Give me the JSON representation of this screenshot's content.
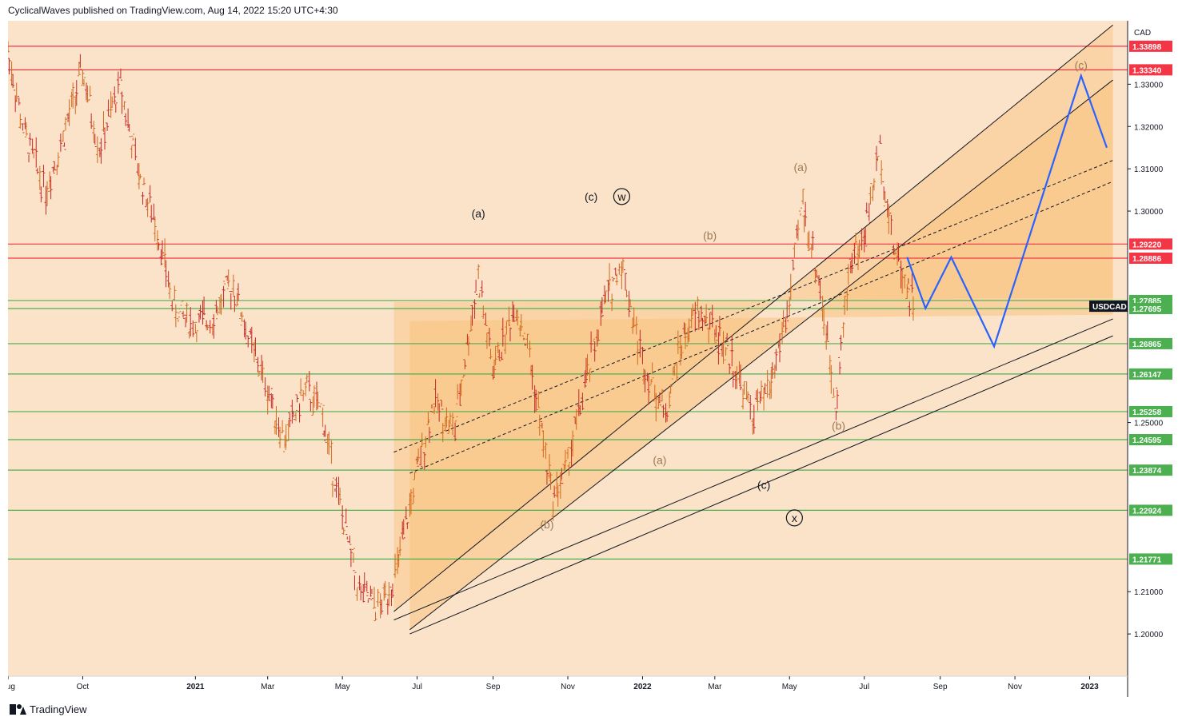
{
  "header": {
    "text": "CyclicalWaves published on TradingView.com, Aug 14, 2022 15:20 UTC+4:30"
  },
  "footer": {
    "brand": "TradingView"
  },
  "colors": {
    "background": "#fbe3c9",
    "channel_fill": "#f9c27f",
    "support": "#4caf50",
    "resistance": "#f23645",
    "projection": "#2962ff",
    "up_candle": "#d2691e",
    "down_candle": "#c62828"
  },
  "chart_data": {
    "type": "line",
    "symbol": "USDCAD",
    "currency": "CAD",
    "ylim": [
      1.19,
      1.345
    ],
    "y_ticks": [
      "1.33000",
      "1.32000",
      "1.31000",
      "1.30000",
      "1.25000",
      "1.21000",
      "1.20000"
    ],
    "x_ticks": [
      "Aug",
      "Oct",
      "2021",
      "Mar",
      "May",
      "Jul",
      "Sep",
      "Nov",
      "2022",
      "Mar",
      "May",
      "Jul",
      "Sep",
      "Nov",
      "2023"
    ],
    "resistance_levels": [
      1.33898,
      1.3334,
      1.2922,
      1.28886
    ],
    "support_levels": [
      1.27885,
      1.27695,
      1.26865,
      1.26147,
      1.25258,
      1.24595,
      1.23874,
      1.22924,
      1.21771
    ],
    "price_labels": {
      "resistance": [
        "1.33898",
        "1.33340",
        "1.29220",
        "1.28886"
      ],
      "support": [
        "1.27885",
        "1.27695",
        "1.26865",
        "1.26147",
        "1.25258",
        "1.24595",
        "1.23874",
        "1.22924",
        "1.21771"
      ],
      "current_symbol": "USDCAD"
    },
    "wave_labels": [
      {
        "text": "(a)",
        "date": "2021-08-20",
        "y": 1.2985,
        "tone": "dark"
      },
      {
        "text": "(c)",
        "date": "2021-11-20",
        "y": 1.3025,
        "tone": "dark"
      },
      {
        "text": "w",
        "date": "2021-12-15",
        "y": 1.3025,
        "tone": "dark",
        "circled": true
      },
      {
        "text": "(b)",
        "date": "2021-10-15",
        "y": 1.225,
        "tone": "muted"
      },
      {
        "text": "(a)",
        "date": "2022-01-15",
        "y": 1.2402,
        "tone": "muted"
      },
      {
        "text": "(b)",
        "date": "2022-02-25",
        "y": 1.2933,
        "tone": "muted"
      },
      {
        "text": "(c)",
        "date": "2022-04-10",
        "y": 1.2343,
        "tone": "dark"
      },
      {
        "text": "x",
        "date": "2022-05-05",
        "y": 1.2265,
        "tone": "dark",
        "circled": true
      },
      {
        "text": "(a)",
        "date": "2022-05-10",
        "y": 1.3095,
        "tone": "muted"
      },
      {
        "text": "(b)",
        "date": "2022-06-10",
        "y": 1.2483,
        "tone": "muted"
      },
      {
        "text": "(c)",
        "date": "2022-12-25",
        "y": 1.3336,
        "tone": "muted"
      }
    ],
    "projection_path": [
      {
        "date": "2022-08-05",
        "y": 1.2891
      },
      {
        "date": "2022-08-20",
        "y": 1.277
      },
      {
        "date": "2022-09-10",
        "y": 1.2891
      },
      {
        "date": "2022-10-15",
        "y": 1.268
      },
      {
        "date": "2022-12-25",
        "y": 1.332
      },
      {
        "date": "2023-01-15",
        "y": 1.315
      }
    ],
    "price_series": [
      {
        "date": "2020-08-01",
        "y": 1.338
      },
      {
        "date": "2020-08-15",
        "y": 1.318
      },
      {
        "date": "2020-09-01",
        "y": 1.305
      },
      {
        "date": "2020-09-15",
        "y": 1.317
      },
      {
        "date": "2020-10-01",
        "y": 1.333
      },
      {
        "date": "2020-10-15",
        "y": 1.315
      },
      {
        "date": "2020-11-01",
        "y": 1.33
      },
      {
        "date": "2020-11-15",
        "y": 1.31
      },
      {
        "date": "2020-12-01",
        "y": 1.296
      },
      {
        "date": "2020-12-15",
        "y": 1.277
      },
      {
        "date": "2021-01-01",
        "y": 1.273
      },
      {
        "date": "2021-01-15",
        "y": 1.275
      },
      {
        "date": "2021-02-01",
        "y": 1.283
      },
      {
        "date": "2021-02-15",
        "y": 1.269
      },
      {
        "date": "2021-03-01",
        "y": 1.258
      },
      {
        "date": "2021-03-15",
        "y": 1.246
      },
      {
        "date": "2021-04-01",
        "y": 1.258
      },
      {
        "date": "2021-04-15",
        "y": 1.252
      },
      {
        "date": "2021-05-01",
        "y": 1.228
      },
      {
        "date": "2021-05-15",
        "y": 1.21
      },
      {
        "date": "2021-06-01",
        "y": 1.206
      },
      {
        "date": "2021-06-15",
        "y": 1.215
      },
      {
        "date": "2021-07-01",
        "y": 1.238
      },
      {
        "date": "2021-07-15",
        "y": 1.255
      },
      {
        "date": "2021-08-01",
        "y": 1.248
      },
      {
        "date": "2021-08-20",
        "y": 1.285
      },
      {
        "date": "2021-09-01",
        "y": 1.262
      },
      {
        "date": "2021-09-20",
        "y": 1.278
      },
      {
        "date": "2021-10-01",
        "y": 1.266
      },
      {
        "date": "2021-10-20",
        "y": 1.232
      },
      {
        "date": "2021-11-01",
        "y": 1.24
      },
      {
        "date": "2021-11-15",
        "y": 1.258
      },
      {
        "date": "2021-12-01",
        "y": 1.278
      },
      {
        "date": "2021-12-15",
        "y": 1.288
      },
      {
        "date": "2022-01-01",
        "y": 1.265
      },
      {
        "date": "2022-01-20",
        "y": 1.252
      },
      {
        "date": "2022-02-01",
        "y": 1.268
      },
      {
        "date": "2022-02-15",
        "y": 1.276
      },
      {
        "date": "2022-03-01",
        "y": 1.272
      },
      {
        "date": "2022-03-15",
        "y": 1.265
      },
      {
        "date": "2022-04-01",
        "y": 1.252
      },
      {
        "date": "2022-04-15",
        "y": 1.258
      },
      {
        "date": "2022-05-01",
        "y": 1.278
      },
      {
        "date": "2022-05-12",
        "y": 1.302
      },
      {
        "date": "2022-05-25",
        "y": 1.284
      },
      {
        "date": "2022-06-08",
        "y": 1.255
      },
      {
        "date": "2022-06-20",
        "y": 1.289
      },
      {
        "date": "2022-07-01",
        "y": 1.293
      },
      {
        "date": "2022-07-14",
        "y": 1.315
      },
      {
        "date": "2022-07-25",
        "y": 1.292
      },
      {
        "date": "2022-08-05",
        "y": 1.283
      },
      {
        "date": "2022-08-12",
        "y": 1.277
      }
    ],
    "channels": [
      {
        "from": {
          "date": "2021-06-12",
          "y": 1.2053
        },
        "to": {
          "date": "2023-01-20",
          "y": 1.344
        },
        "style": "solid"
      },
      {
        "from": {
          "date": "2021-06-25",
          "y": 1.201
        },
        "to": {
          "date": "2023-01-20",
          "y": 1.331
        },
        "style": "solid"
      },
      {
        "from": {
          "date": "2021-06-12",
          "y": 1.2785
        },
        "to": {
          "date": "2023-01-20",
          "y": 1.2795
        },
        "style": "none"
      },
      {
        "from": {
          "date": "2021-06-25",
          "y": 1.274
        },
        "to": {
          "date": "2023-01-20",
          "y": 1.2755
        },
        "style": "none"
      },
      {
        "from": {
          "date": "2021-06-12",
          "y": 1.243
        },
        "to": {
          "date": "2023-01-20",
          "y": 1.312
        },
        "style": "dashed"
      },
      {
        "from": {
          "date": "2021-06-25",
          "y": 1.238
        },
        "to": {
          "date": "2023-01-20",
          "y": 1.307
        },
        "style": "dashed"
      }
    ]
  }
}
